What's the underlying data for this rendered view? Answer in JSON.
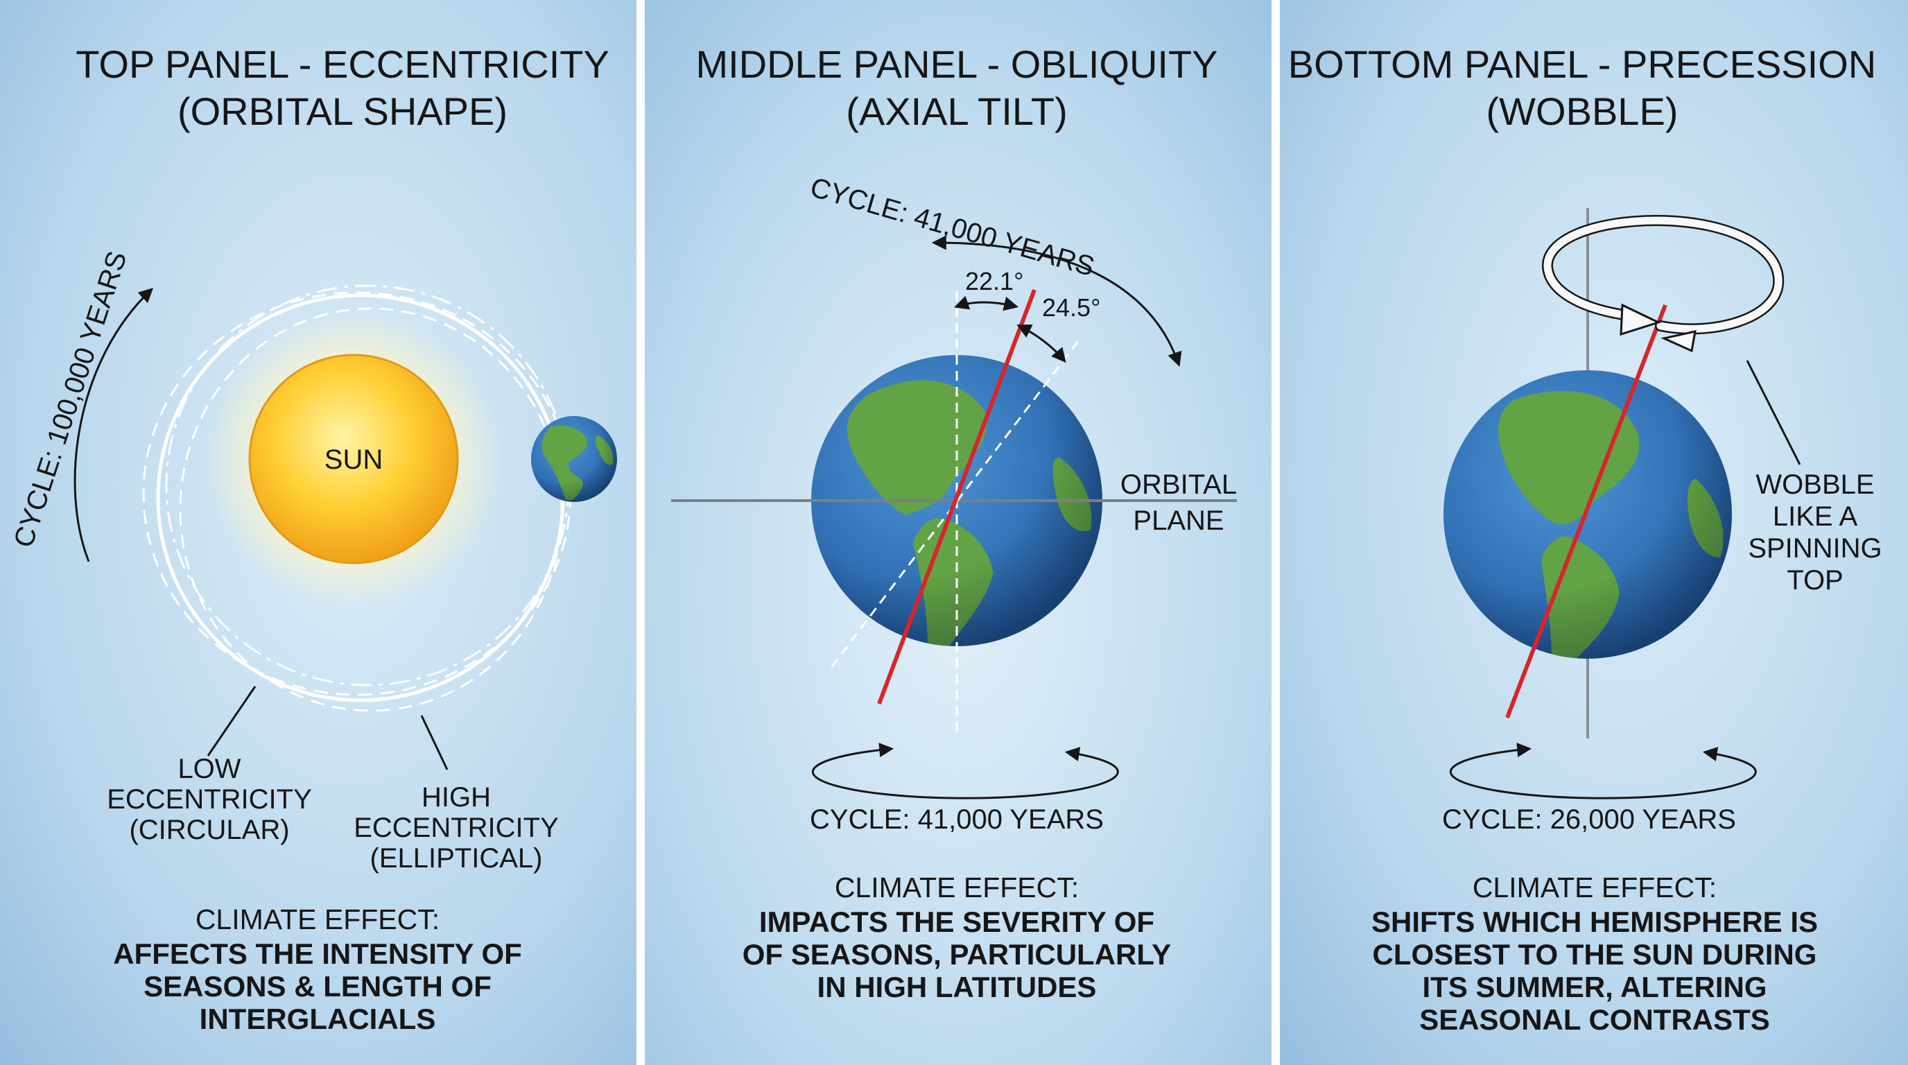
{
  "panels": [
    {
      "title_line1": "TOP PANEL - ECCENTRICITY",
      "title_line2": "(ORBITAL SHAPE)",
      "sun_label": "SUN",
      "cycle_label": "CYCLE: 100,000 YEARS",
      "low_label": [
        "LOW",
        "ECCENTRICITY",
        "(CIRCULAR)"
      ],
      "high_label": [
        "HIGH",
        "ECCENTRICITY",
        "(ELLIPTICAL)"
      ],
      "effect_heading": "CLIMATE EFFECT:",
      "effect_lines": [
        "AFFECTS THE INTENSITY OF",
        "SEASONS & LENGTH OF",
        "INTERGLACIALS"
      ]
    },
    {
      "title_line1": "MIDDLE PANEL - OBLIQUITY",
      "title_line2": "(AXIAL TILT)",
      "cycle_top_label": "CYCLE: 41,000 YEARS",
      "angle_min": "22.1°",
      "angle_max": "24.5°",
      "plane_label": [
        "ORBITAL",
        "PLANE"
      ],
      "cycle_label": "CYCLE: 41,000 YEARS",
      "effect_heading": "CLIMATE EFFECT:",
      "effect_lines": [
        "IMPACTS THE SEVERITY OF",
        "OF SEASONS, PARTICULARLY",
        "IN HIGH LATITUDES"
      ]
    },
    {
      "title_line1": "BOTTOM PANEL - PRECESSION",
      "title_line2": "(WOBBLE)",
      "wobble_label": [
        "WOBBLE",
        "LIKE A",
        "SPINNING",
        "TOP"
      ],
      "cycle_label": "CYCLE: 26,000 YEARS",
      "effect_heading": "CLIMATE EFFECT:",
      "effect_lines": [
        "SHIFTS WHICH HEMISPHERE IS",
        "CLOSEST TO THE SUN DURING",
        "ITS SUMMER, ALTERING",
        "SEASONAL CONTRASTS"
      ]
    }
  ],
  "colors": {
    "panel_light": "#d2e6f3",
    "panel_dark": "#8fb9dc",
    "sun": "#f7b51d",
    "ocean": "#2f6fb2",
    "land": "#62a345",
    "axis": "#d8242a",
    "text": "#161616"
  },
  "icons": [
    "sun-icon",
    "earth-icon",
    "rotation-arrow-icon",
    "wobble-arrow-icon"
  ]
}
